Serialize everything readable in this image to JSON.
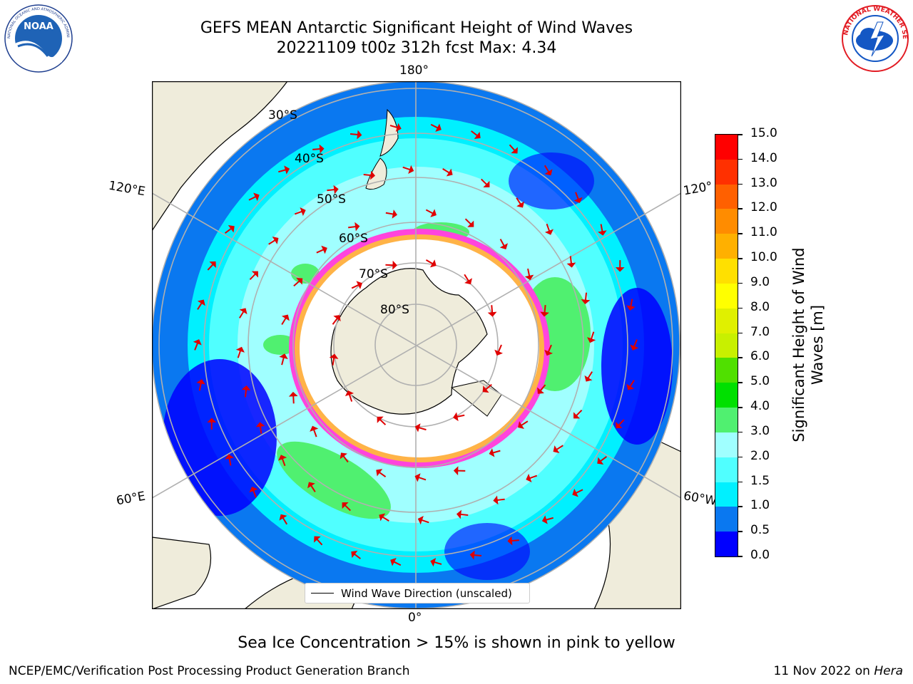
{
  "header": {
    "title_line1": "GEFS MEAN Antarctic Significant Height of Wind Waves",
    "title_line2": "20221109 t00z 312h fcst   Max: 4.34"
  },
  "logos": {
    "left": {
      "name": "NOAA",
      "text": "NOAA",
      "ring_text": "NATIONAL OCEANIC AND ATMOSPHERIC ADMINISTRATION · U.S. DEPARTMENT OF COMMERCE",
      "colors": {
        "ring": "#ffffff",
        "inner": "#1f63b6",
        "wave": "#ffffff"
      }
    },
    "right": {
      "name": "National Weather Service",
      "ring_text": "NATIONAL WEATHER SERVICE",
      "colors": {
        "ring": "#e21b23",
        "inner": "#1457c4"
      }
    }
  },
  "map": {
    "longitude_labels": [
      "180°",
      "120°E",
      "120°",
      "60°E",
      "60°W",
      "0°"
    ],
    "latitude_labels": [
      "30°S",
      "40°S",
      "50°S",
      "60°S",
      "70°S",
      "80°S"
    ],
    "legend_label": "Wind Wave Direction (unscaled)",
    "colors": {
      "land": "#efecdb",
      "ice_edge": "#ff44dd",
      "ice_inner": "#ffb347",
      "arrow": "#e00000",
      "grid": "#b0b0b0",
      "deep_blue": "#0000ff",
      "blue": "#0a78f0",
      "cyan": "#00f0ff",
      "light_cyan": "#50ffff",
      "pale_cyan": "#a0ffff",
      "green": "#50f070"
    }
  },
  "colorbar": {
    "label": "Significant Height of Wind Waves [m]",
    "ticks": [
      "0.0",
      "0.5",
      "1.0",
      "1.5",
      "2.0",
      "3.0",
      "4.0",
      "5.0",
      "6.0",
      "7.0",
      "8.0",
      "9.0",
      "10.0",
      "11.0",
      "12.0",
      "13.0",
      "14.0",
      "15.0"
    ],
    "colors": [
      "#0000ff",
      "#0a78f0",
      "#00f0ff",
      "#50ffff",
      "#a0ffff",
      "#50f070",
      "#00e000",
      "#50e000",
      "#c8f000",
      "#e0f000",
      "#ffff00",
      "#ffe000",
      "#ffb000",
      "#ff8c00",
      "#ff6000",
      "#ff3000",
      "#ff0000"
    ]
  },
  "note": "Sea Ice Concentration > 15% is shown in pink to yellow",
  "footer": {
    "left": "NCEP/EMC/Verification Post Processing Product Generation Branch",
    "right_date": "11 Nov 2022 on ",
    "right_machine": "Hera"
  }
}
